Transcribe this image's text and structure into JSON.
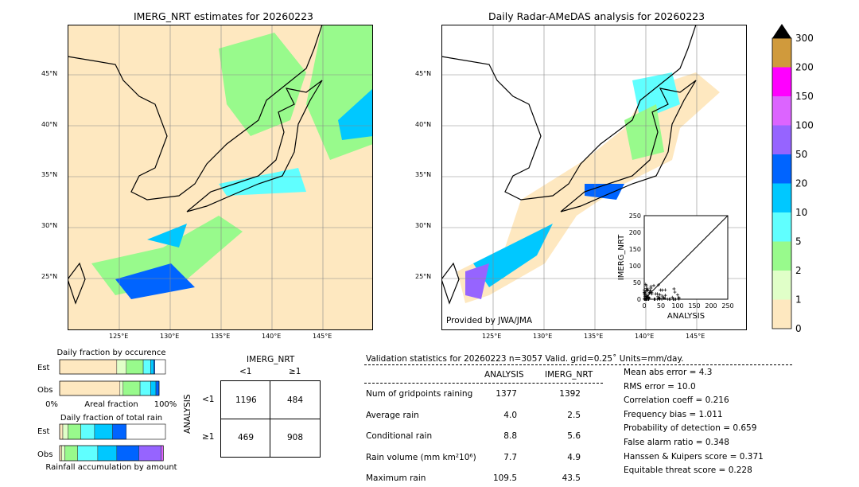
{
  "maps": {
    "left_title": "IMERG_NRT estimates for 20260223",
    "right_title": "Daily Radar-AMeDAS analysis for 20260223",
    "lat_ticks": [
      "45°N",
      "40°N",
      "35°N",
      "30°N",
      "25°N"
    ],
    "lon_ticks": [
      "125°E",
      "130°E",
      "135°E",
      "140°E",
      "145°E"
    ],
    "credit": "Provided by JWA/JMA"
  },
  "colorbar": {
    "levels": [
      "0",
      "1",
      "2",
      "5",
      "10",
      "20",
      "50",
      "100",
      "150",
      "200",
      "300"
    ],
    "colors": [
      "#fee8c0",
      "#e0ffc8",
      "#98fa8c",
      "#60ffff",
      "#00c8ff",
      "#0064ff",
      "#9664ff",
      "#dc64ff",
      "#ff00ff",
      "#d09a3c"
    ],
    "extend_color": "#000000"
  },
  "chart_data": [
    {
      "type": "scatter",
      "title": "",
      "xlabel": "ANALYSIS",
      "ylabel": "IMERG_NRT",
      "xlim": [
        0,
        250
      ],
      "ylim": [
        0,
        250
      ],
      "xticks": [
        "0",
        "50",
        "100",
        "150",
        "200",
        "250"
      ],
      "yticks": [
        "0",
        "50",
        "100",
        "150",
        "200",
        "250"
      ],
      "note": "points clustered near origin, analysis up to ~110, IMERG up to ~45; 1:1 line"
    },
    {
      "type": "bar",
      "title": "Daily fraction by occurence",
      "xlabel": "Areal fraction",
      "categories": [
        "Est",
        "Obs"
      ],
      "xtick_left": "0%",
      "xtick_right": "100%",
      "series": [
        {
          "values": [
            0.54,
            0.57
          ]
        },
        {
          "values": [
            0.09,
            0.03
          ]
        },
        {
          "values": [
            0.16,
            0.16
          ]
        },
        {
          "values": [
            0.07,
            0.1
          ]
        },
        {
          "values": [
            0.03,
            0.05
          ]
        },
        {
          "values": [
            0.01,
            0.03
          ]
        }
      ]
    },
    {
      "type": "bar",
      "title": "Daily fraction of total rain",
      "xlabel": "Rainfall accumulation by amount",
      "categories": [
        "Est",
        "Obs"
      ],
      "series": [
        {
          "values": [
            0.03,
            0.02
          ]
        },
        {
          "values": [
            0.05,
            0.03
          ]
        },
        {
          "values": [
            0.12,
            0.12
          ]
        },
        {
          "values": [
            0.13,
            0.19
          ]
        },
        {
          "values": [
            0.17,
            0.18
          ]
        },
        {
          "values": [
            0.13,
            0.21
          ]
        },
        {
          "values": [
            0,
            0.21
          ]
        },
        {
          "values": [
            0,
            0.02
          ]
        }
      ]
    },
    {
      "type": "table",
      "title": "IMERG_NRT",
      "row_axis": "ANALYSIS",
      "col_labels": [
        "<1",
        "≥1"
      ],
      "row_labels": [
        "<1",
        "≥1"
      ],
      "cells": [
        [
          "1196",
          "484"
        ],
        [
          "469",
          "908"
        ]
      ]
    }
  ],
  "stats": {
    "header": "Validation statistics for 20260223  n=3057 Valid. grid=0.25˚ Units=mm/day.",
    "col_headers": [
      "ANALYSIS",
      "IMERG_NRT"
    ],
    "rows": [
      {
        "label": "Num of gridpoints raining",
        "a": "1377",
        "b": "1392"
      },
      {
        "label": "Average rain",
        "a": "4.0",
        "b": "2.5"
      },
      {
        "label": "Conditional rain",
        "a": "8.8",
        "b": "5.6"
      },
      {
        "label": "Rain volume (mm km²10⁶)",
        "a": "7.7",
        "b": "4.9"
      },
      {
        "label": "Maximum rain",
        "a": "109.5",
        "b": "43.5"
      }
    ],
    "scores": [
      "Mean abs error =    4.3",
      "RMS error =   10.0",
      "Correlation coeff =  0.216",
      "Frequency bias =  1.011",
      "Probability of detection =  0.659",
      "False alarm ratio =  0.348",
      "Hanssen & Kuipers score =  0.371",
      "Equitable threat score =  0.228"
    ]
  }
}
